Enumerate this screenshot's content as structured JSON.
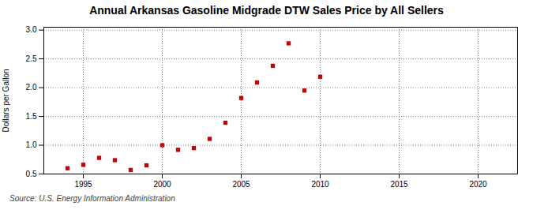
{
  "chart_data": {
    "type": "scatter",
    "title": "Annual Arkansas Gasoline Midgrade DTW Sales Price by All Sellers",
    "ylabel": "Dollars per Gallon",
    "annotation": "Source: U.S. Energy Information Administration",
    "x": [
      1994,
      1995,
      1996,
      1997,
      1998,
      1999,
      2000,
      2001,
      2002,
      2003,
      2004,
      2005,
      2006,
      2007,
      2008,
      2009,
      2010
    ],
    "values": [
      0.6,
      0.66,
      0.78,
      0.74,
      0.57,
      0.65,
      1.0,
      0.92,
      0.95,
      1.11,
      1.39,
      1.82,
      2.09,
      2.38,
      2.77,
      1.95,
      2.19
    ],
    "color": "#cc0000",
    "marker": "square",
    "xlim": [
      1992.5,
      2022.5
    ],
    "ylim": [
      0.5,
      3.05
    ],
    "xticks": [
      1995,
      2000,
      2005,
      2010,
      2015,
      2020
    ],
    "yticks": [
      0.5,
      {
        "value": 1.0,
        "label": "1.0"
      },
      1.5,
      {
        "value": 2.0,
        "label": "2.0"
      },
      2.5,
      {
        "value": 3.0,
        "label": "3.0"
      }
    ],
    "grid": true
  }
}
